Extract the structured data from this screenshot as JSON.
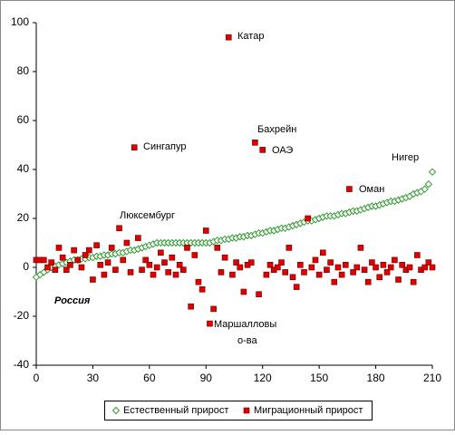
{
  "chart_data": {
    "type": "scatter",
    "x": [
      0,
      2,
      4,
      6,
      8,
      10,
      12,
      14,
      16,
      18,
      20,
      22,
      24,
      26,
      28,
      30,
      32,
      34,
      36,
      38,
      40,
      42,
      44,
      46,
      48,
      50,
      52,
      54,
      56,
      58,
      60,
      62,
      64,
      66,
      68,
      70,
      72,
      74,
      76,
      78,
      80,
      82,
      84,
      86,
      88,
      90,
      92,
      94,
      96,
      98,
      100,
      102,
      104,
      106,
      108,
      110,
      112,
      114,
      116,
      118,
      120,
      122,
      124,
      126,
      128,
      130,
      132,
      134,
      136,
      138,
      140,
      142,
      144,
      146,
      148,
      150,
      152,
      154,
      156,
      158,
      160,
      162,
      164,
      166,
      168,
      170,
      172,
      174,
      176,
      178,
      180,
      182,
      184,
      186,
      188,
      190,
      192,
      194,
      196,
      198,
      200,
      202,
      204,
      206,
      208,
      210
    ],
    "series": [
      {
        "name": "Естественный прирост",
        "color": "#339933",
        "marker": "diamond",
        "values": [
          -4,
          -3,
          -2,
          -1,
          0,
          0.5,
          1,
          1.5,
          2,
          2.5,
          3,
          3,
          3.5,
          3.5,
          4,
          4,
          4.5,
          4.5,
          5,
          5,
          5.5,
          5.5,
          6,
          6,
          6.5,
          7,
          7,
          7.5,
          8,
          8.5,
          9,
          9.5,
          10,
          10,
          10,
          10,
          10,
          10,
          10,
          10,
          10,
          10,
          10,
          10,
          10,
          10,
          10,
          10.5,
          11,
          11,
          11.5,
          11.5,
          12,
          12,
          12.5,
          12.5,
          13,
          13,
          13.5,
          14,
          14,
          14.5,
          15,
          15,
          15.5,
          16,
          16,
          16.5,
          17,
          17.5,
          18,
          18.5,
          19,
          19,
          19.5,
          20,
          20.5,
          21,
          21,
          21,
          21.5,
          22,
          22,
          22.5,
          23,
          23,
          23.5,
          24,
          24.5,
          25,
          25,
          25.5,
          26,
          26.5,
          27,
          27,
          27.5,
          28,
          28.5,
          29,
          30,
          30.5,
          31,
          32,
          34,
          39
        ]
      },
      {
        "name": "Миграционный прирост",
        "color": "#e00000",
        "marker": "square",
        "values": [
          3,
          3,
          3,
          0,
          2,
          -1,
          8,
          4,
          -1,
          1,
          7,
          3,
          0,
          5,
          7,
          -5,
          9,
          1,
          -3,
          2,
          8,
          -1,
          16,
          3,
          10,
          -2,
          49,
          12,
          -1,
          3,
          1,
          -3,
          0,
          6,
          2,
          -2,
          4,
          -3,
          1,
          -1,
          8,
          -16,
          5,
          -6,
          -9,
          15,
          -23,
          -17,
          8,
          -2,
          4,
          94,
          -3,
          2,
          0,
          -10,
          1,
          2,
          51,
          -11,
          48,
          -3,
          1,
          -1,
          0,
          2,
          -2,
          8,
          -4,
          -8,
          1,
          -2,
          20,
          0,
          3,
          -3,
          6,
          -1,
          2,
          -6,
          0,
          -3,
          1,
          32,
          -2,
          0,
          8,
          -1,
          -6,
          2,
          0,
          -4,
          1,
          -2,
          0,
          3,
          -5,
          1,
          -1,
          0,
          -6,
          5,
          -1,
          0,
          2,
          0
        ]
      }
    ],
    "annotations": [
      "Катар",
      "Сингапур",
      "Бахрейн",
      "ОАЭ",
      "Нигер",
      "Оман",
      "Люксембург",
      "Россия",
      "Маршалловы",
      "о-ва"
    ],
    "xlim": [
      0,
      210
    ],
    "xticks": [
      0,
      30,
      60,
      90,
      120,
      150,
      180,
      210
    ],
    "ylim": [
      -40,
      100
    ],
    "yticks": [
      -40,
      -20,
      0,
      20,
      40,
      60,
      80,
      100
    ],
    "grid": false,
    "legend": "bottom"
  }
}
